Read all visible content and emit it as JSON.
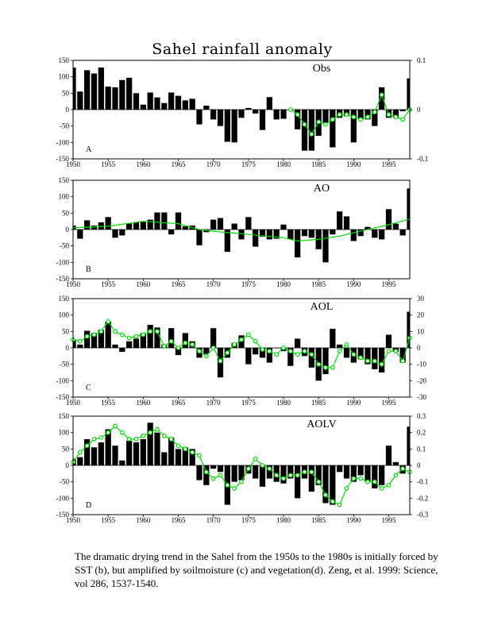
{
  "figure_title": "Sahel rainfall anomaly",
  "caption": "The dramatic drying trend in the Sahel from the 1950s to the 1980s is initially forced by SST (b), but amplified by soilmoisture (c) and vegetation(d).   Zeng, et al. 1999: Science, vol 286, 1537-1540.",
  "colors": {
    "bars": "#000000",
    "green": "#00dd00",
    "axis": "#000000"
  },
  "chart_data": [
    {
      "type": "bar",
      "title": "Obs",
      "panel_letter": "A",
      "x": [
        1950,
        1951,
        1952,
        1953,
        1954,
        1955,
        1956,
        1957,
        1958,
        1959,
        1960,
        1961,
        1962,
        1963,
        1964,
        1965,
        1966,
        1967,
        1968,
        1969,
        1970,
        1971,
        1972,
        1973,
        1974,
        1975,
        1976,
        1977,
        1978,
        1979,
        1980,
        1981,
        1982,
        1983,
        1984,
        1985,
        1986,
        1987,
        1988,
        1989,
        1990,
        1991,
        1992,
        1993,
        1994,
        1995,
        1996,
        1997,
        1998
      ],
      "values": [
        128,
        55,
        120,
        110,
        128,
        70,
        68,
        90,
        97,
        50,
        15,
        52,
        37,
        20,
        52,
        42,
        28,
        33,
        -45,
        12,
        -30,
        -50,
        -98,
        -100,
        -25,
        5,
        -12,
        -62,
        38,
        -30,
        -28,
        0,
        -60,
        -125,
        -125,
        -80,
        -40,
        -115,
        -25,
        -20,
        -100,
        -30,
        -30,
        -50,
        68,
        -25,
        -25,
        -5,
        95
      ],
      "series": [
        {
          "name": "green line (right axis)",
          "x": [
            1981,
            1982,
            1983,
            1984,
            1985,
            1986,
            1987,
            1988,
            1989,
            1990,
            1991,
            1992,
            1993,
            1994,
            1995,
            1996,
            1997,
            1998
          ],
          "values": [
            0.0,
            -0.01,
            -0.03,
            -0.05,
            -0.025,
            -0.03,
            -0.02,
            -0.01,
            -0.01,
            -0.015,
            -0.02,
            -0.015,
            -0.005,
            0.03,
            -0.01,
            -0.015,
            -0.02,
            0.0
          ]
        }
      ],
      "xlim": [
        1950,
        1998
      ],
      "ylim": [
        -150,
        150
      ],
      "y_ticks": [
        "150",
        "100",
        "50",
        "0",
        "-50",
        "-100",
        "-150"
      ],
      "x_ticks": [
        "1950",
        "1955",
        "1960",
        "1965",
        "1970",
        "1975",
        "1980",
        "1985",
        "1990",
        "1995"
      ],
      "y2lim": [
        -0.1,
        0.1
      ],
      "y2_ticks": [
        "0.1",
        "0",
        "-0.1"
      ]
    },
    {
      "type": "bar",
      "title": "AO",
      "panel_letter": "B",
      "x": [
        1950,
        1951,
        1952,
        1953,
        1954,
        1955,
        1956,
        1957,
        1958,
        1959,
        1960,
        1961,
        1962,
        1963,
        1964,
        1965,
        1966,
        1967,
        1968,
        1969,
        1970,
        1971,
        1972,
        1973,
        1974,
        1975,
        1976,
        1977,
        1978,
        1979,
        1980,
        1981,
        1982,
        1983,
        1984,
        1985,
        1986,
        1987,
        1988,
        1989,
        1990,
        1991,
        1992,
        1993,
        1994,
        1995,
        1996,
        1997,
        1998
      ],
      "values": [
        12,
        -28,
        28,
        12,
        22,
        38,
        -25,
        -18,
        18,
        22,
        25,
        30,
        52,
        52,
        -15,
        52,
        10,
        12,
        -48,
        -8,
        30,
        35,
        -68,
        18,
        -30,
        38,
        -52,
        -22,
        -30,
        -28,
        15,
        -30,
        -85,
        -20,
        -25,
        -60,
        -100,
        -15,
        55,
        40,
        -35,
        -20,
        8,
        -25,
        -30,
        62,
        18,
        -18,
        125
      ],
      "series": [
        {
          "name": "green line",
          "x": [
            1950,
            1955,
            1960,
            1965,
            1968,
            1970,
            1975,
            1980,
            1982,
            1985,
            1988,
            1990,
            1995,
            1998
          ],
          "values": [
            5,
            10,
            25,
            18,
            0,
            -5,
            -15,
            -25,
            -35,
            -30,
            -20,
            -10,
            15,
            32
          ]
        }
      ],
      "xlim": [
        1950,
        1998
      ],
      "ylim": [
        -150,
        150
      ],
      "y_ticks": [
        "150",
        "100",
        "50",
        "0",
        "-50",
        "-100",
        "-150"
      ],
      "x_ticks": [
        "1950",
        "1955",
        "1960",
        "1965",
        "1970",
        "1975",
        "1980",
        "1985",
        "1990",
        "1995"
      ]
    },
    {
      "type": "bar",
      "title": "AOL",
      "panel_letter": "C",
      "x": [
        1950,
        1951,
        1952,
        1953,
        1954,
        1955,
        1956,
        1957,
        1958,
        1959,
        1960,
        1961,
        1962,
        1963,
        1964,
        1965,
        1966,
        1967,
        1968,
        1969,
        1970,
        1971,
        1972,
        1973,
        1974,
        1975,
        1976,
        1977,
        1978,
        1979,
        1980,
        1981,
        1982,
        1983,
        1984,
        1985,
        1986,
        1987,
        1988,
        1989,
        1990,
        1991,
        1992,
        1993,
        1994,
        1995,
        1996,
        1997,
        1998
      ],
      "values": [
        25,
        10,
        52,
        45,
        55,
        80,
        10,
        -12,
        20,
        28,
        45,
        70,
        62,
        10,
        60,
        -22,
        45,
        20,
        -30,
        -18,
        60,
        -90,
        -30,
        15,
        38,
        -50,
        -20,
        -30,
        -45,
        0,
        -10,
        -55,
        28,
        -25,
        -60,
        -100,
        -80,
        58,
        10,
        -30,
        -45,
        -35,
        -50,
        -65,
        -75,
        40,
        -12,
        -45,
        110
      ],
      "series": [
        {
          "name": "green line (right axis)",
          "x": [
            1950,
            1951,
            1952,
            1953,
            1954,
            1955,
            1956,
            1957,
            1958,
            1959,
            1960,
            1961,
            1962,
            1963,
            1964,
            1965,
            1966,
            1967,
            1968,
            1969,
            1970,
            1971,
            1972,
            1973,
            1974,
            1975,
            1976,
            1977,
            1978,
            1979,
            1980,
            1981,
            1982,
            1983,
            1984,
            1985,
            1986,
            1987,
            1988,
            1989,
            1990,
            1991,
            1992,
            1993,
            1994,
            1995,
            1996,
            1997,
            1998
          ],
          "values": [
            5,
            4,
            7,
            8,
            10,
            16,
            10,
            8,
            6,
            7,
            8,
            10,
            10,
            1,
            4,
            0,
            3,
            2,
            -2,
            -5,
            0,
            -8,
            -3,
            2,
            5,
            8,
            4,
            -1,
            -2,
            -4,
            0,
            -2,
            -4,
            -2,
            -4,
            -10,
            -12,
            -12,
            -2,
            2,
            -4,
            -6,
            -8,
            -8,
            -10,
            -2,
            -2,
            -8,
            6
          ]
        }
      ],
      "xlim": [
        1950,
        1998
      ],
      "ylim": [
        -150,
        150
      ],
      "y_ticks": [
        "150",
        "100",
        "50",
        "0",
        "-50",
        "-100",
        "-150"
      ],
      "x_ticks": [
        "1950",
        "1955",
        "1960",
        "1965",
        "1970",
        "1975",
        "1980",
        "1985",
        "1990",
        "1995"
      ],
      "y2lim": [
        -30,
        30
      ],
      "y2_ticks": [
        "30",
        "20",
        "10",
        "0",
        "-10",
        "-20",
        "-30"
      ]
    },
    {
      "type": "bar",
      "title": "AOLV",
      "panel_letter": "D",
      "x": [
        1950,
        1951,
        1952,
        1953,
        1954,
        1955,
        1956,
        1957,
        1958,
        1959,
        1960,
        1961,
        1962,
        1963,
        1964,
        1965,
        1966,
        1967,
        1968,
        1969,
        1970,
        1971,
        1972,
        1973,
        1974,
        1975,
        1976,
        1977,
        1978,
        1979,
        1980,
        1981,
        1982,
        1983,
        1984,
        1985,
        1986,
        1987,
        1988,
        1989,
        1990,
        1991,
        1992,
        1993,
        1994,
        1995,
        1996,
        1997,
        1998
      ],
      "values": [
        20,
        25,
        80,
        55,
        70,
        110,
        60,
        15,
        75,
        70,
        80,
        130,
        100,
        40,
        85,
        50,
        55,
        50,
        -45,
        -60,
        -10,
        -20,
        -120,
        -50,
        -45,
        -25,
        -40,
        -65,
        -40,
        -50,
        -55,
        -40,
        -100,
        -40,
        -80,
        -60,
        -115,
        -120,
        -20,
        -40,
        -50,
        -30,
        -50,
        -70,
        -60,
        60,
        10,
        -25,
        118
      ],
      "series": [
        {
          "name": "green line (right axis)",
          "x": [
            1950,
            1951,
            1952,
            1953,
            1954,
            1955,
            1956,
            1957,
            1958,
            1959,
            1960,
            1961,
            1962,
            1963,
            1964,
            1965,
            1966,
            1967,
            1968,
            1969,
            1970,
            1971,
            1972,
            1973,
            1974,
            1975,
            1976,
            1977,
            1978,
            1979,
            1980,
            1981,
            1982,
            1983,
            1984,
            1985,
            1986,
            1987,
            1988,
            1989,
            1990,
            1991,
            1992,
            1993,
            1994,
            1995,
            1996,
            1997,
            1998
          ],
          "values": [
            0.02,
            0.08,
            0.12,
            0.16,
            0.17,
            0.2,
            0.24,
            0.2,
            0.16,
            0.16,
            0.18,
            0.2,
            0.22,
            0.18,
            0.16,
            0.12,
            0.1,
            0.08,
            0.06,
            -0.04,
            -0.08,
            -0.06,
            -0.12,
            -0.14,
            -0.1,
            -0.02,
            0.04,
            0.0,
            -0.02,
            -0.06,
            -0.08,
            -0.06,
            -0.06,
            -0.04,
            -0.04,
            -0.1,
            -0.18,
            -0.22,
            -0.24,
            -0.14,
            -0.08,
            -0.08,
            -0.1,
            -0.1,
            -0.14,
            -0.12,
            -0.06,
            -0.02,
            -0.04
          ]
        }
      ],
      "xlim": [
        1950,
        1998
      ],
      "ylim": [
        -150,
        150
      ],
      "y_ticks": [
        "150",
        "100",
        "50",
        "0",
        "-50",
        "-100",
        "-150"
      ],
      "x_ticks": [
        "1950",
        "1955",
        "1960",
        "1965",
        "1970",
        "1975",
        "1980",
        "1985",
        "1990",
        "1995"
      ],
      "y2lim": [
        -0.3,
        0.3
      ],
      "y2_ticks": [
        "0.3",
        "0.2",
        "0.1",
        "0",
        "-0.1",
        "-0.2",
        "-0.3"
      ]
    }
  ]
}
